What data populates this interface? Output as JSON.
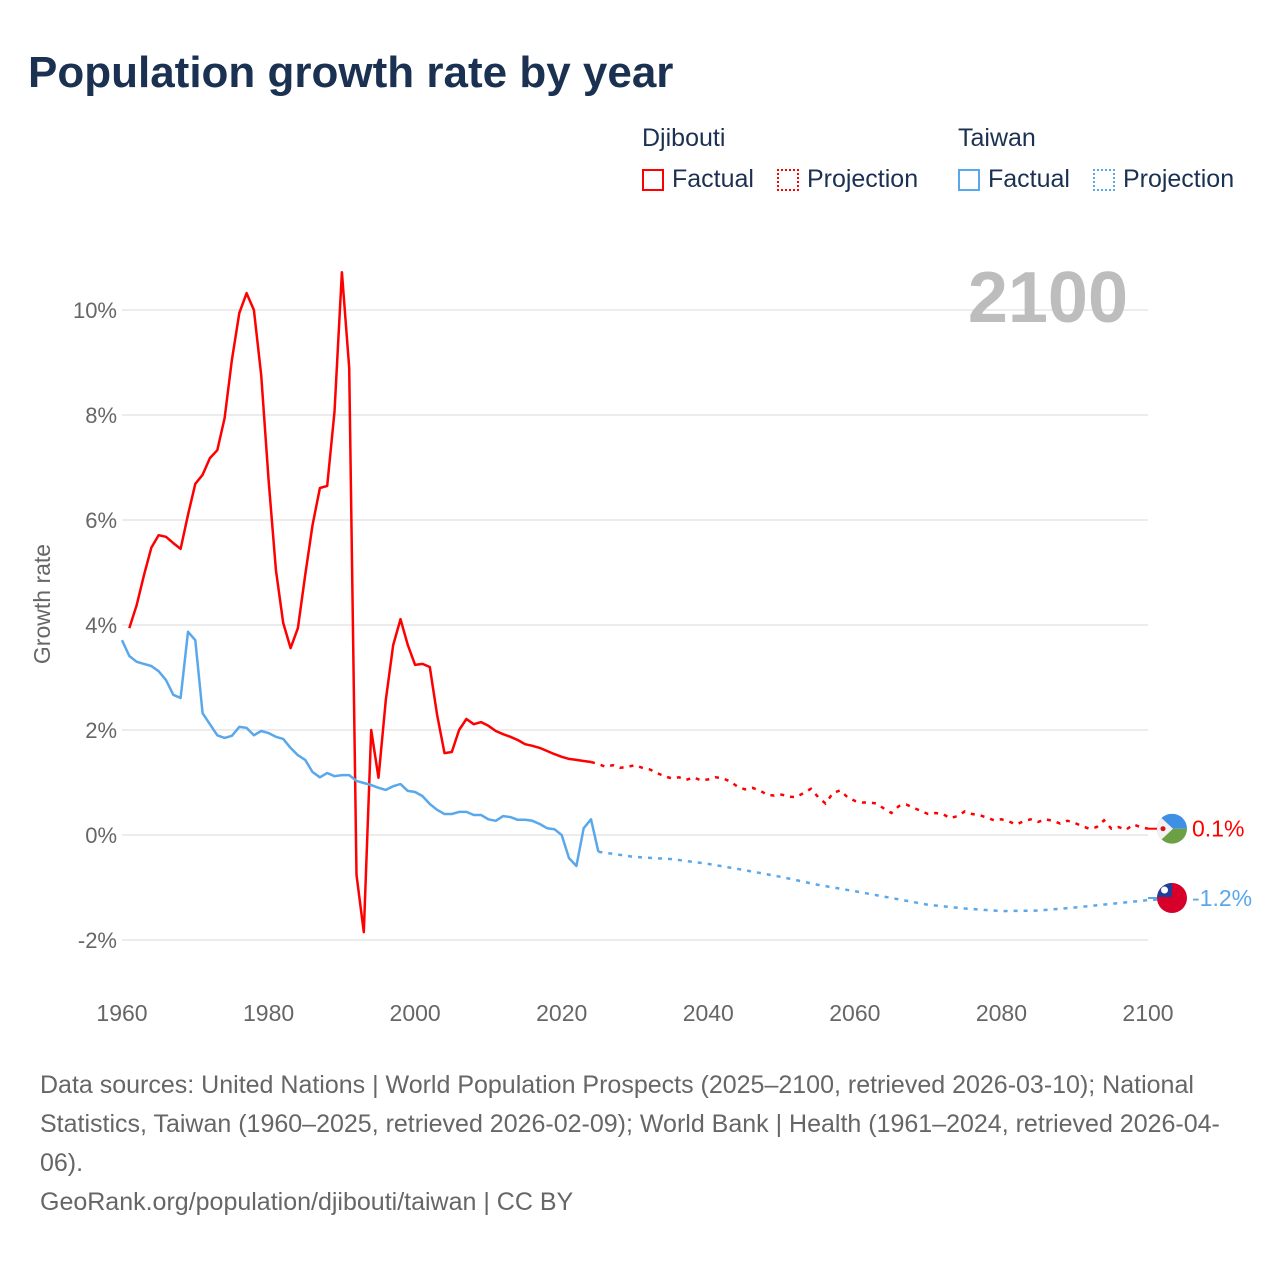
{
  "title": "Population growth rate by year",
  "legend": [
    {
      "name": "Djibouti",
      "color": "#ff0000",
      "factual_label": "Factual",
      "projection_label": "Projection"
    },
    {
      "name": "Taiwan",
      "color": "#5aa8ec",
      "factual_label": "Factual",
      "projection_label": "Projection"
    }
  ],
  "year_label": "2100",
  "footer": {
    "sources": "Data sources: United Nations | World Population Prospects (2025–2100, retrieved 2026-03-10); National Statistics, Taiwan (1960–2025, retrieved 2026-02-09); World Bank | Health (1961–2024, retrieved 2026-04-06).",
    "credit": "GeoRank.org/population/djibouti/taiwan | CC BY"
  },
  "chart_data": {
    "type": "line",
    "title": "Population growth rate by year",
    "xlabel": "",
    "ylabel": "Growth rate",
    "xlim": [
      1960,
      2100
    ],
    "ylim": [
      -2.8,
      11
    ],
    "xticks": [
      1960,
      1980,
      2000,
      2020,
      2040,
      2060,
      2080,
      2100
    ],
    "xtick_labels": [
      "1960",
      "1980",
      "2000",
      "2020",
      "2040",
      "2060",
      "2080",
      "2100"
    ],
    "yticks": [
      -2,
      0,
      2,
      4,
      6,
      8,
      10
    ],
    "ytick_labels": [
      "-2%",
      "0%",
      "2%",
      "4%",
      "6%",
      "8%",
      "10%"
    ],
    "grid": true,
    "legend_position": "top-right",
    "series": [
      {
        "name": "Djibouti",
        "color": "#ff0000",
        "end_label": "0.1%",
        "factual": {
          "x_start": 1961,
          "values": [
            3.94,
            4.38,
            4.95,
            5.47,
            5.71,
            5.68,
            5.56,
            5.45,
            6.1,
            6.69,
            6.86,
            7.18,
            7.33,
            7.94,
            9.05,
            9.94,
            10.32,
            10.0,
            8.76,
            6.76,
            5.05,
            4.04,
            3.56,
            3.94,
            4.95,
            5.9,
            6.61,
            6.65,
            8.06,
            10.72,
            8.9,
            -0.76,
            -1.85,
            2.0,
            1.09,
            2.57,
            3.62,
            4.11,
            3.62,
            3.24,
            3.26,
            3.2,
            2.29,
            1.56,
            1.58,
            2.0,
            2.21,
            2.11,
            2.15,
            2.08,
            1.98,
            1.92,
            1.87,
            1.81,
            1.73,
            1.7,
            1.66,
            1.6,
            1.54,
            1.49,
            1.45,
            1.43,
            1.41,
            1.39
          ]
        },
        "projection": {
          "x_start": 2024,
          "values": [
            1.39,
            1.35,
            1.3,
            1.33,
            1.28,
            1.3,
            1.33,
            1.28,
            1.25,
            1.18,
            1.12,
            1.08,
            1.1,
            1.05,
            1.1,
            1.04,
            1.06,
            1.1,
            1.08,
            1.02,
            0.92,
            0.87,
            0.9,
            0.85,
            0.77,
            0.75,
            0.77,
            0.73,
            0.72,
            0.8,
            0.88,
            0.72,
            0.6,
            0.8,
            0.85,
            0.72,
            0.65,
            0.62,
            0.62,
            0.6,
            0.5,
            0.42,
            0.55,
            0.58,
            0.52,
            0.46,
            0.4,
            0.42,
            0.4,
            0.32,
            0.36,
            0.45,
            0.4,
            0.38,
            0.33,
            0.28,
            0.3,
            0.26,
            0.2,
            0.26,
            0.3,
            0.25,
            0.3,
            0.27,
            0.22,
            0.27,
            0.23,
            0.17,
            0.12,
            0.15,
            0.28,
            0.12,
            0.15,
            0.1,
            0.2,
            0.15,
            0.12
          ]
        }
      },
      {
        "name": "Taiwan",
        "color": "#5aa8ec",
        "end_label": "-1.2%",
        "factual": {
          "x_start": 1960,
          "values": [
            3.71,
            3.41,
            3.3,
            3.26,
            3.22,
            3.12,
            2.95,
            2.67,
            2.61,
            3.87,
            3.71,
            2.32,
            2.11,
            1.9,
            1.85,
            1.89,
            2.06,
            2.04,
            1.9,
            1.98,
            1.94,
            1.87,
            1.83,
            1.66,
            1.52,
            1.43,
            1.2,
            1.1,
            1.18,
            1.12,
            1.14,
            1.14,
            1.03,
            0.99,
            0.95,
            0.9,
            0.86,
            0.93,
            0.97,
            0.84,
            0.82,
            0.74,
            0.59,
            0.48,
            0.4,
            0.4,
            0.44,
            0.44,
            0.38,
            0.38,
            0.3,
            0.27,
            0.36,
            0.34,
            0.29,
            0.29,
            0.27,
            0.21,
            0.13,
            0.11,
            0.0,
            -0.44,
            -0.59,
            0.13,
            0.3,
            -0.32
          ]
        },
        "projection": {
          "x_start": 2025,
          "step": 5,
          "values": [
            -0.32,
            -0.42,
            -0.46,
            -0.55,
            -0.67,
            -0.8,
            -0.95,
            -1.07,
            -1.2,
            -1.33,
            -1.4,
            -1.45,
            -1.44,
            -1.38,
            -1.31,
            -1.24,
            -1.2
          ]
        }
      }
    ]
  }
}
